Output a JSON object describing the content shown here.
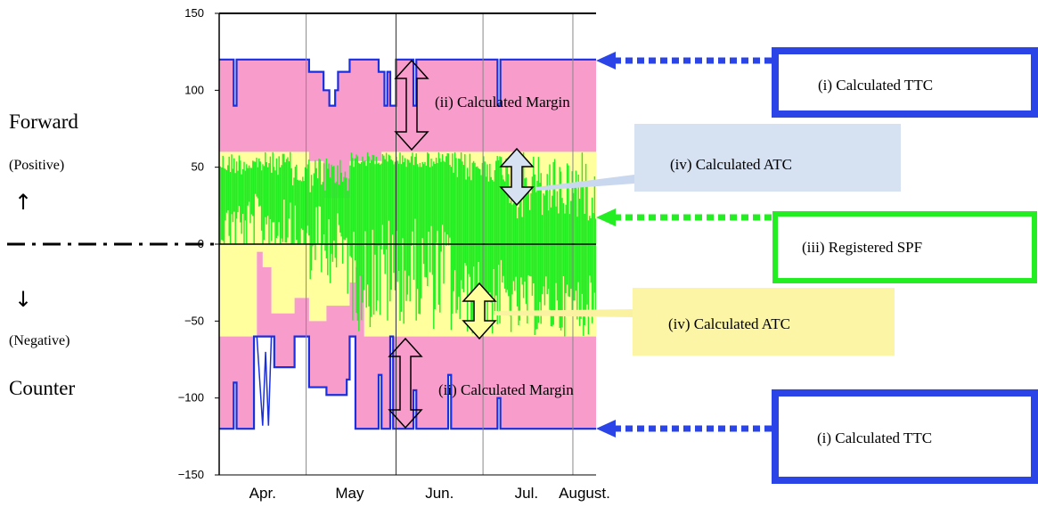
{
  "side_labels": {
    "forward": "Forward",
    "positive": "(Positive)",
    "up_arrow": "↑",
    "down_arrow": "↓",
    "negative": "(Negative)",
    "counter": "Counter"
  },
  "annotations": {
    "ttc_top": "(i) Calculated TTC",
    "ttc_bottom": "(i) Calculated TTC",
    "margin_top": "(ii) Calculated Margin",
    "margin_bottom": "(ii) Calculated Margin",
    "spf": "(iii) Registered SPF",
    "atc_top": "(iv) Calculated ATC",
    "atc_bottom": "(iv) Calculated ATC"
  },
  "colors": {
    "ttc_line": "#1a2fe0",
    "ttc_box": "#2b44e8",
    "margin_fill": "#f79ccb",
    "atc_fill": "#ffff9e",
    "spf": "#22ee22",
    "atc_top_box": "#d6e1f2",
    "atc_bottom_box": "#fbf5a5",
    "atc_top_connector": "#c9d8ee",
    "atc_bottom_connector": "#faf2a0"
  },
  "chart_data": {
    "type": "area",
    "x_tick_labels": [
      "Apr.",
      "May",
      "Jun.",
      "Jul.",
      "August."
    ],
    "y_ticks": [
      150,
      100,
      50,
      0,
      -50,
      -100,
      -150
    ],
    "ylim": [
      -150,
      150
    ],
    "xlim_days": [
      0,
      130
    ],
    "month_boundaries_day": [
      30,
      61,
      91,
      122
    ],
    "series": [
      {
        "name": "(i) Calculated TTC",
        "segments_forward": [
          [
            0,
            120
          ],
          [
            5,
            90
          ],
          [
            6,
            120
          ],
          [
            30,
            120
          ],
          [
            31,
            112
          ],
          [
            35,
            112
          ],
          [
            36,
            100
          ],
          [
            38,
            90
          ],
          [
            40,
            100
          ],
          [
            41,
            112
          ],
          [
            44,
            112
          ],
          [
            45,
            120
          ],
          [
            54,
            120
          ],
          [
            55,
            112
          ],
          [
            57,
            90
          ],
          [
            58,
            112
          ],
          [
            59,
            90
          ],
          [
            61,
            120
          ],
          [
            66,
            120
          ],
          [
            67,
            90
          ],
          [
            68,
            120
          ],
          [
            95,
            120
          ],
          [
            96,
            90
          ],
          [
            97,
            120
          ],
          [
            130,
            120
          ]
        ],
        "segments_counter": [
          [
            0,
            -120
          ],
          [
            5,
            -90
          ],
          [
            6,
            -120
          ],
          [
            11,
            -120
          ],
          [
            12,
            -60
          ],
          [
            18,
            -60
          ],
          [
            19,
            -80
          ],
          [
            25,
            -80
          ],
          [
            26,
            -60
          ],
          [
            30,
            -60
          ],
          [
            31,
            -93
          ],
          [
            36,
            -93
          ],
          [
            37,
            -98
          ],
          [
            43,
            -98
          ],
          [
            44,
            -88
          ],
          [
            45,
            -60
          ],
          [
            46,
            -60
          ],
          [
            47,
            -120
          ],
          [
            54,
            -120
          ],
          [
            55,
            -85
          ],
          [
            56,
            -120
          ],
          [
            58,
            -120
          ],
          [
            59,
            -60
          ],
          [
            60,
            -120
          ],
          [
            66,
            -120
          ],
          [
            67,
            -95
          ],
          [
            68,
            -120
          ],
          [
            78,
            -120
          ],
          [
            79,
            -85
          ],
          [
            80,
            -120
          ],
          [
            95,
            -120
          ],
          [
            96,
            -100
          ],
          [
            97,
            -120
          ],
          [
            130,
            -120
          ]
        ]
      },
      {
        "name": "(ii) Calculated Margin",
        "margin_forward_bottom": [
          [
            0,
            60
          ],
          [
            30,
            60
          ],
          [
            31,
            54
          ],
          [
            35,
            54
          ],
          [
            36,
            30
          ],
          [
            44,
            30
          ],
          [
            45,
            54
          ],
          [
            55,
            54
          ],
          [
            56,
            60
          ],
          [
            130,
            60
          ]
        ],
        "margin_counter_top": [
          [
            0,
            -60
          ],
          [
            12,
            -60
          ],
          [
            13,
            -5
          ],
          [
            15,
            -15
          ],
          [
            18,
            -45
          ],
          [
            25,
            -45
          ],
          [
            26,
            -35
          ],
          [
            30,
            -35
          ],
          [
            31,
            -50
          ],
          [
            36,
            -50
          ],
          [
            37,
            -40
          ],
          [
            44,
            -40
          ],
          [
            45,
            -25
          ],
          [
            47,
            -15
          ],
          [
            48,
            -20
          ],
          [
            50,
            -60
          ],
          [
            130,
            -60
          ]
        ]
      },
      {
        "name": "(iii) Registered SPF",
        "range": [
          -60,
          60
        ]
      },
      {
        "name": "(iv) Calculated ATC"
      }
    ]
  }
}
